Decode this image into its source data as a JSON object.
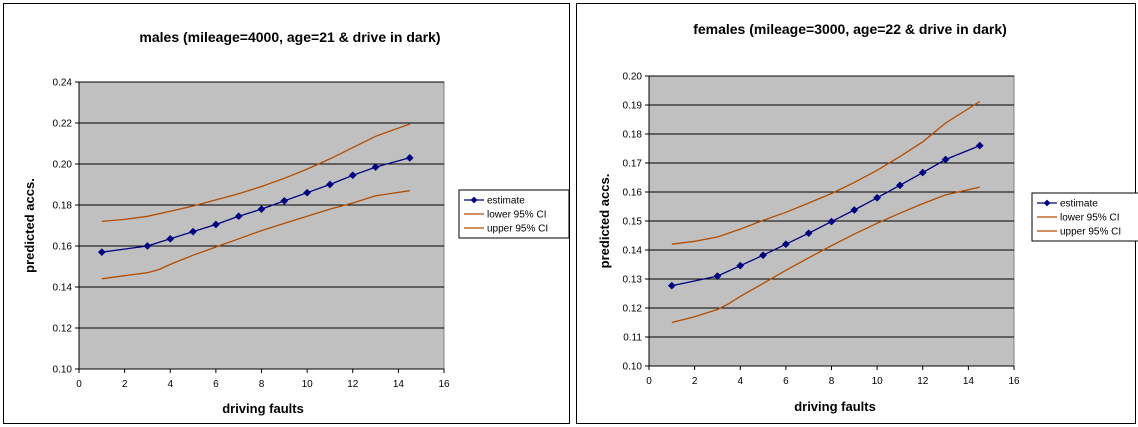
{
  "colors": {
    "plot_area": "#c0c0c0",
    "gridline": "#000000",
    "estimate": "#000080",
    "ci": "#b34d00"
  },
  "chart_data": [
    {
      "type": "line",
      "title": "males (mileage=4000, age=21 & drive in dark)",
      "xlabel": "driving faults",
      "ylabel": "predicted accs.",
      "xlim": [
        0,
        16
      ],
      "ylim": [
        0.1,
        0.24
      ],
      "x_ticks": [
        "0",
        "2",
        "4",
        "6",
        "8",
        "10",
        "12",
        "14",
        "16"
      ],
      "y_ticks": [
        "0.10",
        "0.12",
        "0.14",
        "0.16",
        "0.18",
        "0.20",
        "0.22",
        "0.24"
      ],
      "grid": true,
      "legend": "right",
      "series": [
        {
          "name": "estimate",
          "marker": "diamond",
          "x": [
            1,
            3,
            4,
            5,
            6,
            7,
            8,
            9,
            10,
            11,
            12,
            13,
            14.5
          ],
          "y": [
            0.157,
            0.16,
            0.1635,
            0.167,
            0.1705,
            0.1745,
            0.178,
            0.182,
            0.186,
            0.19,
            0.1945,
            0.1985,
            0.203
          ]
        },
        {
          "name": "lower 95% CI",
          "x": [
            1,
            2,
            3,
            3.5,
            4,
            5,
            6,
            7,
            8,
            9,
            10,
            11,
            12,
            13,
            14.5
          ],
          "y": [
            0.144,
            0.1455,
            0.147,
            0.1485,
            0.151,
            0.1555,
            0.1595,
            0.1635,
            0.1675,
            0.171,
            0.1745,
            0.178,
            0.181,
            0.1845,
            0.187
          ]
        },
        {
          "name": "upper 95% CI",
          "x": [
            1,
            2,
            3,
            4,
            5,
            6,
            7,
            8,
            9,
            10,
            11,
            12,
            13,
            14.5
          ],
          "y": [
            0.172,
            0.173,
            0.1745,
            0.177,
            0.1795,
            0.1825,
            0.1855,
            0.189,
            0.193,
            0.1975,
            0.2025,
            0.208,
            0.2135,
            0.2195
          ]
        }
      ]
    },
    {
      "type": "line",
      "title": "females (mileage=3000, age=22 & drive in dark)",
      "xlabel": "driving faults",
      "ylabel": "predicted accs.",
      "xlim": [
        0,
        16
      ],
      "ylim": [
        0.1,
        0.2
      ],
      "x_ticks": [
        "0",
        "2",
        "4",
        "6",
        "8",
        "10",
        "12",
        "14",
        "16"
      ],
      "y_ticks": [
        "0.10",
        "0.11",
        "0.12",
        "0.13",
        "0.14",
        "0.15",
        "0.16",
        "0.17",
        "0.18",
        "0.19",
        "0.20"
      ],
      "grid": true,
      "legend": "right",
      "series": [
        {
          "name": "estimate",
          "marker": "diamond",
          "x": [
            1,
            3,
            4,
            5,
            6,
            7,
            8,
            9,
            10,
            11,
            12,
            13,
            14.5
          ],
          "y": [
            0.1277,
            0.131,
            0.1346,
            0.1382,
            0.142,
            0.1458,
            0.1498,
            0.1538,
            0.158,
            0.1623,
            0.1667,
            0.1712,
            0.176
          ]
        },
        {
          "name": "lower 95% CI",
          "x": [
            1,
            2,
            3,
            3.5,
            4,
            5,
            6,
            7,
            8,
            9,
            10,
            11,
            12,
            13,
            14.5
          ],
          "y": [
            0.115,
            0.117,
            0.1195,
            0.1215,
            0.124,
            0.1285,
            0.133,
            0.1373,
            0.1415,
            0.1455,
            0.1492,
            0.1527,
            0.156,
            0.159,
            0.1617
          ]
        },
        {
          "name": "upper 95% CI",
          "x": [
            1,
            2,
            3,
            4,
            5,
            6,
            7,
            8,
            9,
            10,
            11,
            12,
            13,
            14.5
          ],
          "y": [
            0.142,
            0.143,
            0.1445,
            0.1472,
            0.1502,
            0.153,
            0.1562,
            0.1595,
            0.1633,
            0.1675,
            0.1722,
            0.1773,
            0.1838,
            0.1912
          ]
        }
      ]
    }
  ]
}
